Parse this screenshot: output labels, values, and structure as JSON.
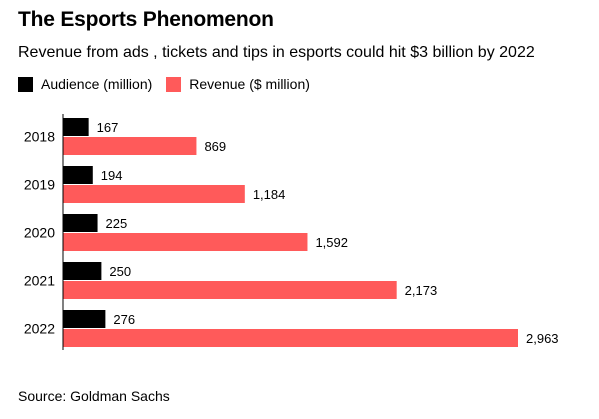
{
  "title": "The Esports Phenomenon",
  "subtitle": "Revenue from ads , tickets and tips in esports could hit $3 billion by 2022",
  "source": "Source: Goldman Sachs",
  "colors": {
    "audience": "#000000",
    "revenue": "#ff5a5a"
  },
  "chart_data": {
    "type": "bar",
    "orientation": "horizontal",
    "categories": [
      "2018",
      "2019",
      "2020",
      "2021",
      "2022"
    ],
    "series": [
      {
        "name": "Audience (million)",
        "values": [
          167,
          194,
          225,
          250,
          276
        ],
        "labels": [
          "167",
          "194",
          "225",
          "250",
          "276"
        ]
      },
      {
        "name": "Revenue ($ million)",
        "values": [
          869,
          1184,
          1592,
          2173,
          2963
        ],
        "labels": [
          "869",
          "1,184",
          "1,592",
          "2,173",
          "2,963"
        ]
      }
    ],
    "title": "The Esports Phenomenon",
    "xlabel": "",
    "ylabel": "",
    "xlim": [
      0,
      2963
    ],
    "grid": false,
    "legend": "top-left"
  }
}
